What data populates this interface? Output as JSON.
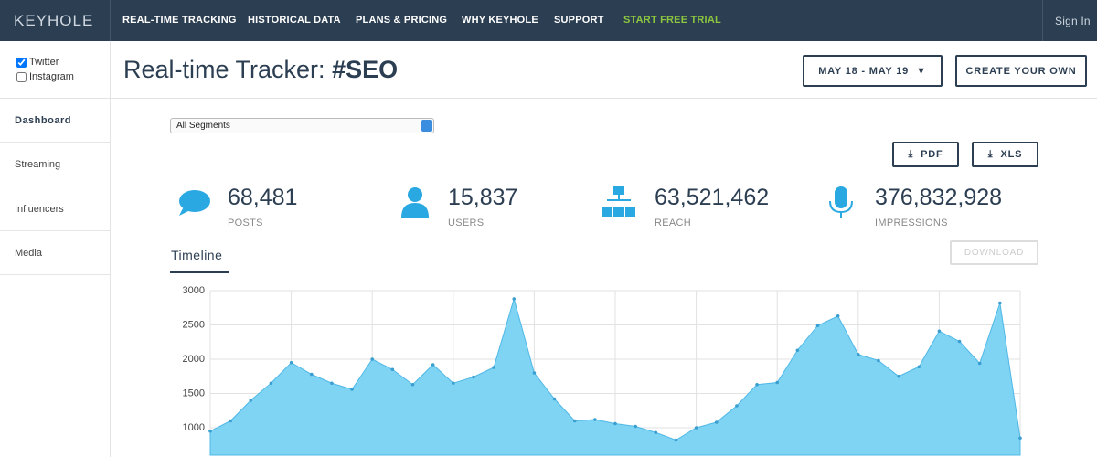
{
  "nav": {
    "logo": "KEYHOLE",
    "items": [
      "REAL-TIME TRACKING",
      "HISTORICAL DATA",
      "PLANS & PRICING",
      "WHY KEYHOLE",
      "SUPPORT"
    ],
    "cta": "START FREE TRIAL",
    "sign_in": "Sign In"
  },
  "sidebar": {
    "networks": [
      {
        "label": "Twitter",
        "checked": true
      },
      {
        "label": "Instagram",
        "checked": false
      }
    ],
    "menu": [
      "Dashboard",
      "Streaming",
      "Influencers",
      "Media"
    ]
  },
  "header": {
    "title": "Real-time Tracker:",
    "hashtag": "#SEO",
    "date_range": "MAY 18 - MAY 19",
    "create_button": "CREATE YOUR OWN"
  },
  "segment_select": "All Segments",
  "exports": [
    "PDF",
    "XLS"
  ],
  "stats": [
    {
      "value": "68,481",
      "label": "POSTS"
    },
    {
      "value": "15,837",
      "label": "USERS"
    },
    {
      "value": "63,521,462",
      "label": "REACH"
    },
    {
      "value": "376,832,928",
      "label": "IMPRESSIONS"
    }
  ],
  "tab": "Timeline",
  "download": "DOWNLOAD",
  "timeline_chart": {
    "type": "area",
    "color": "#7fd3f3",
    "values": [
      950,
      1100,
      1400,
      1650,
      1950,
      1780,
      1650,
      1560,
      2000,
      1850,
      1630,
      1920,
      1650,
      1740,
      1880,
      2880,
      1800,
      1420,
      1100,
      1120,
      1060,
      1020,
      930,
      820,
      1000,
      1080,
      1320,
      1630,
      1660,
      2130,
      2490,
      2630,
      2070,
      1980,
      1750,
      1890,
      2410,
      2260,
      1940,
      2820,
      850
    ],
    "ylim": [
      600,
      3000
    ],
    "yticks": [
      1000,
      1500,
      2000,
      2500,
      3000
    ],
    "grid": true
  }
}
